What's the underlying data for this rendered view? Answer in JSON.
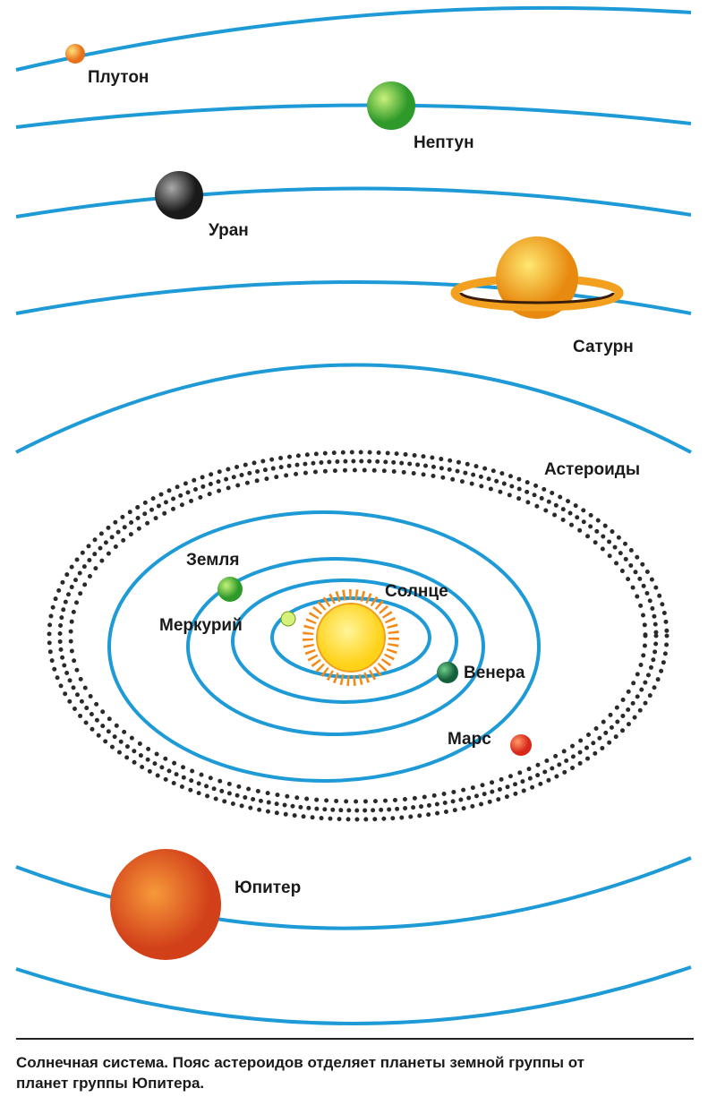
{
  "labels": {
    "pluto": "Плутон",
    "neptune": "Нептун",
    "uranus": "Уран",
    "saturn": "Сатурн",
    "asteroids": "Астероиды",
    "earth": "Земля",
    "sun": "Солнце",
    "mercury": "Меркурий",
    "venus": "Венера",
    "mars": "Марс",
    "jupiter": "Юпитер"
  },
  "caption": {
    "lines": [
      "Солнечная система. Пояс астероидов отделяет планеты земной группы от",
      "планет группы Юпитера."
    ]
  }
}
